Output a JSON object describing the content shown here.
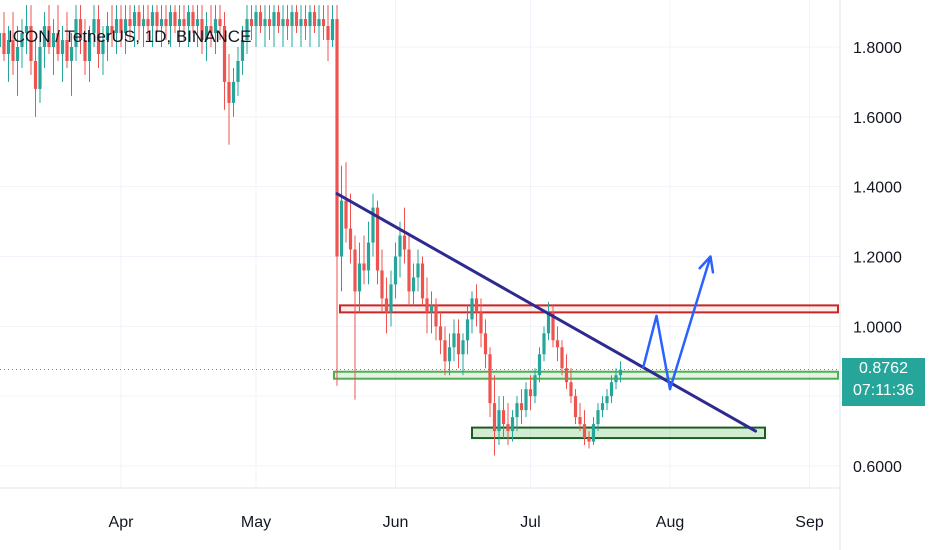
{
  "header": {
    "title": "ICON / TetherUS, 1D, BINANCE"
  },
  "price_badge": {
    "price": "0.8762",
    "countdown": "07:11:36"
  },
  "colors": {
    "up": "#26a69a",
    "down": "#ef5350",
    "trendline": "#2e2a8f",
    "resistance": "#c62828",
    "support": "#4caf50",
    "arrow": "#2962ff",
    "grid": "#f0f3fa",
    "price_line": "#26a69a"
  },
  "chart_data": {
    "type": "candlestick",
    "title": "ICON / TetherUS, 1D, BINANCE",
    "y_ticks": [
      "1.8000",
      "1.6000",
      "1.4000",
      "1.2000",
      "1.0000",
      "0.6000"
    ],
    "x_ticks": [
      "Apr",
      "May",
      "Jun",
      "Jul",
      "Aug",
      "Sep"
    ],
    "ylim": [
      0.55,
      1.92
    ],
    "last_price": 0.8762,
    "grid": true,
    "candles": [
      {
        "d": "Mar 05",
        "o": 1.8,
        "h": 1.88,
        "l": 1.72,
        "c": 1.84
      },
      {
        "d": "Mar 06",
        "o": 1.84,
        "h": 1.9,
        "l": 1.76,
        "c": 1.78
      },
      {
        "d": "Mar 07",
        "o": 1.78,
        "h": 1.86,
        "l": 1.7,
        "c": 1.82
      },
      {
        "d": "Mar 08",
        "o": 1.82,
        "h": 1.9,
        "l": 1.72,
        "c": 1.76
      },
      {
        "d": "Mar 09",
        "o": 1.76,
        "h": 1.86,
        "l": 1.66,
        "c": 1.8
      },
      {
        "d": "Mar 10",
        "o": 1.8,
        "h": 1.88,
        "l": 1.74,
        "c": 1.84
      },
      {
        "d": "Mar 11",
        "o": 1.84,
        "h": 1.92,
        "l": 1.78,
        "c": 1.86
      },
      {
        "d": "Mar 12",
        "o": 1.86,
        "h": 1.92,
        "l": 1.72,
        "c": 1.76
      },
      {
        "d": "Mar 13",
        "o": 1.76,
        "h": 1.82,
        "l": 1.6,
        "c": 1.68
      },
      {
        "d": "Mar 14",
        "o": 1.68,
        "h": 1.84,
        "l": 1.64,
        "c": 1.8
      },
      {
        "d": "Mar 15",
        "o": 1.8,
        "h": 1.9,
        "l": 1.74,
        "c": 1.86
      },
      {
        "d": "Mar 16",
        "o": 1.86,
        "h": 1.92,
        "l": 1.78,
        "c": 1.8
      },
      {
        "d": "Mar 17",
        "o": 1.8,
        "h": 1.88,
        "l": 1.72,
        "c": 1.84
      },
      {
        "d": "Mar 18",
        "o": 1.84,
        "h": 1.92,
        "l": 1.76,
        "c": 1.78
      },
      {
        "d": "Mar 19",
        "o": 1.78,
        "h": 1.86,
        "l": 1.7,
        "c": 1.82
      },
      {
        "d": "Mar 20",
        "o": 1.82,
        "h": 1.9,
        "l": 1.74,
        "c": 1.76
      },
      {
        "d": "Mar 21",
        "o": 1.76,
        "h": 1.84,
        "l": 1.66,
        "c": 1.8
      },
      {
        "d": "Mar 22",
        "o": 1.8,
        "h": 1.92,
        "l": 1.76,
        "c": 1.88
      },
      {
        "d": "Mar 23",
        "o": 1.88,
        "h": 1.92,
        "l": 1.78,
        "c": 1.82
      },
      {
        "d": "Mar 24",
        "o": 1.82,
        "h": 1.88,
        "l": 1.72,
        "c": 1.76
      },
      {
        "d": "Mar 25",
        "o": 1.76,
        "h": 1.86,
        "l": 1.7,
        "c": 1.84
      },
      {
        "d": "Mar 26",
        "o": 1.84,
        "h": 1.92,
        "l": 1.8,
        "c": 1.88
      },
      {
        "d": "Mar 27",
        "o": 1.88,
        "h": 1.92,
        "l": 1.74,
        "c": 1.78
      },
      {
        "d": "Mar 28",
        "o": 1.78,
        "h": 1.86,
        "l": 1.72,
        "c": 1.82
      },
      {
        "d": "Mar 29",
        "o": 1.82,
        "h": 1.9,
        "l": 1.76,
        "c": 1.86
      },
      {
        "d": "Mar 30",
        "o": 1.86,
        "h": 1.92,
        "l": 1.8,
        "c": 1.84
      },
      {
        "d": "Mar 31",
        "o": 1.84,
        "h": 1.92,
        "l": 1.78,
        "c": 1.88
      },
      {
        "d": "Apr 01",
        "o": 1.88,
        "h": 1.92,
        "l": 1.8,
        "c": 1.84
      },
      {
        "d": "Apr 02",
        "o": 1.84,
        "h": 1.92,
        "l": 1.78,
        "c": 1.88
      },
      {
        "d": "Apr 03",
        "o": 1.88,
        "h": 1.92,
        "l": 1.82,
        "c": 1.86
      },
      {
        "d": "Apr 04",
        "o": 1.86,
        "h": 1.92,
        "l": 1.8,
        "c": 1.9
      },
      {
        "d": "Apr 05",
        "o": 1.9,
        "h": 1.92,
        "l": 1.82,
        "c": 1.86
      },
      {
        "d": "Apr 06",
        "o": 1.86,
        "h": 1.92,
        "l": 1.8,
        "c": 1.88
      },
      {
        "d": "Apr 07",
        "o": 1.88,
        "h": 1.92,
        "l": 1.82,
        "c": 1.86
      },
      {
        "d": "Apr 08",
        "o": 1.86,
        "h": 1.92,
        "l": 1.8,
        "c": 1.9
      },
      {
        "d": "Apr 09",
        "o": 1.9,
        "h": 1.92,
        "l": 1.84,
        "c": 1.86
      },
      {
        "d": "Apr 10",
        "o": 1.86,
        "h": 1.92,
        "l": 1.8,
        "c": 1.88
      },
      {
        "d": "Apr 11",
        "o": 1.88,
        "h": 1.92,
        "l": 1.82,
        "c": 1.86
      },
      {
        "d": "Apr 12",
        "o": 1.86,
        "h": 1.92,
        "l": 1.8,
        "c": 1.9
      },
      {
        "d": "Apr 13",
        "o": 1.9,
        "h": 1.92,
        "l": 1.84,
        "c": 1.86
      },
      {
        "d": "Apr 14",
        "o": 1.86,
        "h": 1.92,
        "l": 1.8,
        "c": 1.88
      },
      {
        "d": "Apr 15",
        "o": 1.88,
        "h": 1.92,
        "l": 1.82,
        "c": 1.86
      },
      {
        "d": "Apr 16",
        "o": 1.86,
        "h": 1.92,
        "l": 1.8,
        "c": 1.9
      },
      {
        "d": "Apr 17",
        "o": 1.9,
        "h": 1.92,
        "l": 1.84,
        "c": 1.86
      },
      {
        "d": "Apr 18",
        "o": 1.86,
        "h": 1.92,
        "l": 1.8,
        "c": 1.88
      },
      {
        "d": "Apr 19",
        "o": 1.88,
        "h": 1.92,
        "l": 1.78,
        "c": 1.82
      },
      {
        "d": "Apr 20",
        "o": 1.82,
        "h": 1.9,
        "l": 1.76,
        "c": 1.86
      },
      {
        "d": "Apr 21",
        "o": 1.86,
        "h": 1.92,
        "l": 1.8,
        "c": 1.84
      },
      {
        "d": "Apr 22",
        "o": 1.84,
        "h": 1.92,
        "l": 1.78,
        "c": 1.88
      },
      {
        "d": "Apr 23",
        "o": 1.88,
        "h": 1.92,
        "l": 1.82,
        "c": 1.86
      },
      {
        "d": "Apr 24",
        "o": 1.86,
        "h": 1.9,
        "l": 1.62,
        "c": 1.7
      },
      {
        "d": "Apr 25",
        "o": 1.7,
        "h": 1.78,
        "l": 1.52,
        "c": 1.64
      },
      {
        "d": "Apr 26",
        "o": 1.64,
        "h": 1.74,
        "l": 1.6,
        "c": 1.7
      },
      {
        "d": "Apr 27",
        "o": 1.7,
        "h": 1.8,
        "l": 1.66,
        "c": 1.76
      },
      {
        "d": "Apr 28",
        "o": 1.76,
        "h": 1.86,
        "l": 1.72,
        "c": 1.82
      },
      {
        "d": "Apr 29",
        "o": 1.82,
        "h": 1.92,
        "l": 1.78,
        "c": 1.88
      },
      {
        "d": "Apr 30",
        "o": 1.88,
        "h": 1.92,
        "l": 1.82,
        "c": 1.86
      },
      {
        "d": "May 01",
        "o": 1.86,
        "h": 1.92,
        "l": 1.8,
        "c": 1.9
      },
      {
        "d": "May 02",
        "o": 1.9,
        "h": 1.92,
        "l": 1.84,
        "c": 1.86
      },
      {
        "d": "May 03",
        "o": 1.86,
        "h": 1.92,
        "l": 1.8,
        "c": 1.88
      },
      {
        "d": "May 04",
        "o": 1.88,
        "h": 1.92,
        "l": 1.82,
        "c": 1.86
      },
      {
        "d": "May 05",
        "o": 1.86,
        "h": 1.92,
        "l": 1.8,
        "c": 1.9
      },
      {
        "d": "May 06",
        "o": 1.9,
        "h": 1.92,
        "l": 1.84,
        "c": 1.86
      },
      {
        "d": "May 07",
        "o": 1.86,
        "h": 1.92,
        "l": 1.8,
        "c": 1.88
      },
      {
        "d": "May 08",
        "o": 1.88,
        "h": 1.92,
        "l": 1.82,
        "c": 1.86
      },
      {
        "d": "May 09",
        "o": 1.86,
        "h": 1.92,
        "l": 1.8,
        "c": 1.9
      },
      {
        "d": "May 10",
        "o": 1.9,
        "h": 1.92,
        "l": 1.84,
        "c": 1.86
      },
      {
        "d": "May 11",
        "o": 1.86,
        "h": 1.92,
        "l": 1.8,
        "c": 1.88
      },
      {
        "d": "May 12",
        "o": 1.88,
        "h": 1.92,
        "l": 1.82,
        "c": 1.86
      },
      {
        "d": "May 13",
        "o": 1.86,
        "h": 1.92,
        "l": 1.8,
        "c": 1.9
      },
      {
        "d": "May 14",
        "o": 1.9,
        "h": 1.92,
        "l": 1.84,
        "c": 1.86
      },
      {
        "d": "May 15",
        "o": 1.86,
        "h": 1.92,
        "l": 1.8,
        "c": 1.88
      },
      {
        "d": "May 16",
        "o": 1.88,
        "h": 1.92,
        "l": 1.82,
        "c": 1.86
      },
      {
        "d": "May 17",
        "o": 1.86,
        "h": 1.92,
        "l": 1.76,
        "c": 1.82
      },
      {
        "d": "May 18",
        "o": 1.82,
        "h": 1.92,
        "l": 1.8,
        "c": 1.88
      },
      {
        "d": "May 19",
        "o": 1.88,
        "h": 1.92,
        "l": 0.83,
        "c": 1.2
      },
      {
        "d": "May 20",
        "o": 1.2,
        "h": 1.46,
        "l": 1.1,
        "c": 1.36
      },
      {
        "d": "May 21",
        "o": 1.36,
        "h": 1.47,
        "l": 1.24,
        "c": 1.28
      },
      {
        "d": "May 22",
        "o": 1.28,
        "h": 1.38,
        "l": 1.18,
        "c": 1.22
      },
      {
        "d": "May 23",
        "o": 1.22,
        "h": 1.26,
        "l": 0.79,
        "c": 1.1
      },
      {
        "d": "May 24",
        "o": 1.1,
        "h": 1.24,
        "l": 1.04,
        "c": 1.18
      },
      {
        "d": "May 25",
        "o": 1.18,
        "h": 1.26,
        "l": 1.12,
        "c": 1.16
      },
      {
        "d": "May 26",
        "o": 1.16,
        "h": 1.3,
        "l": 1.12,
        "c": 1.24
      },
      {
        "d": "May 27",
        "o": 1.24,
        "h": 1.38,
        "l": 1.2,
        "c": 1.34
      },
      {
        "d": "May 28",
        "o": 1.34,
        "h": 1.36,
        "l": 1.12,
        "c": 1.16
      },
      {
        "d": "May 29",
        "o": 1.16,
        "h": 1.22,
        "l": 1.04,
        "c": 1.08
      },
      {
        "d": "May 30",
        "o": 1.08,
        "h": 1.14,
        "l": 0.98,
        "c": 1.04
      },
      {
        "d": "May 31",
        "o": 1.04,
        "h": 1.16,
        "l": 1.0,
        "c": 1.12
      },
      {
        "d": "Jun 01",
        "o": 1.12,
        "h": 1.24,
        "l": 1.08,
        "c": 1.2
      },
      {
        "d": "Jun 02",
        "o": 1.2,
        "h": 1.3,
        "l": 1.14,
        "c": 1.26
      },
      {
        "d": "Jun 03",
        "o": 1.26,
        "h": 1.34,
        "l": 1.18,
        "c": 1.22
      },
      {
        "d": "Jun 04",
        "o": 1.22,
        "h": 1.26,
        "l": 1.06,
        "c": 1.1
      },
      {
        "d": "Jun 05",
        "o": 1.1,
        "h": 1.18,
        "l": 1.06,
        "c": 1.14
      },
      {
        "d": "Jun 06",
        "o": 1.14,
        "h": 1.22,
        "l": 1.1,
        "c": 1.18
      },
      {
        "d": "Jun 07",
        "o": 1.18,
        "h": 1.2,
        "l": 1.06,
        "c": 1.08
      },
      {
        "d": "Jun 08",
        "o": 1.08,
        "h": 1.14,
        "l": 0.98,
        "c": 1.04
      },
      {
        "d": "Jun 09",
        "o": 1.04,
        "h": 1.1,
        "l": 0.98,
        "c": 1.06
      },
      {
        "d": "Jun 10",
        "o": 1.06,
        "h": 1.08,
        "l": 0.96,
        "c": 1.0
      },
      {
        "d": "Jun 11",
        "o": 1.0,
        "h": 1.04,
        "l": 0.92,
        "c": 0.96
      },
      {
        "d": "Jun 12",
        "o": 0.96,
        "h": 1.0,
        "l": 0.86,
        "c": 0.9
      },
      {
        "d": "Jun 13",
        "o": 0.9,
        "h": 0.98,
        "l": 0.86,
        "c": 0.94
      },
      {
        "d": "Jun 14",
        "o": 0.94,
        "h": 1.02,
        "l": 0.9,
        "c": 0.98
      },
      {
        "d": "Jun 15",
        "o": 0.98,
        "h": 1.02,
        "l": 0.88,
        "c": 0.92
      },
      {
        "d": "Jun 16",
        "o": 0.92,
        "h": 0.98,
        "l": 0.86,
        "c": 0.96
      },
      {
        "d": "Jun 17",
        "o": 0.96,
        "h": 1.06,
        "l": 0.92,
        "c": 1.02
      },
      {
        "d": "Jun 18",
        "o": 1.02,
        "h": 1.1,
        "l": 0.98,
        "c": 1.08
      },
      {
        "d": "Jun 19",
        "o": 1.08,
        "h": 1.12,
        "l": 1.0,
        "c": 1.04
      },
      {
        "d": "Jun 20",
        "o": 1.04,
        "h": 1.08,
        "l": 0.94,
        "c": 0.98
      },
      {
        "d": "Jun 21",
        "o": 0.98,
        "h": 1.02,
        "l": 0.88,
        "c": 0.92
      },
      {
        "d": "Jun 22",
        "o": 0.92,
        "h": 0.94,
        "l": 0.74,
        "c": 0.78
      },
      {
        "d": "Jun 23",
        "o": 0.78,
        "h": 0.86,
        "l": 0.63,
        "c": 0.7
      },
      {
        "d": "Jun 24",
        "o": 0.7,
        "h": 0.8,
        "l": 0.66,
        "c": 0.76
      },
      {
        "d": "Jun 25",
        "o": 0.76,
        "h": 0.8,
        "l": 0.68,
        "c": 0.72
      },
      {
        "d": "Jun 26",
        "o": 0.72,
        "h": 0.78,
        "l": 0.66,
        "c": 0.7
      },
      {
        "d": "Jun 27",
        "o": 0.7,
        "h": 0.76,
        "l": 0.67,
        "c": 0.74
      },
      {
        "d": "Jun 28",
        "o": 0.74,
        "h": 0.8,
        "l": 0.7,
        "c": 0.78
      },
      {
        "d": "Jun 29",
        "o": 0.78,
        "h": 0.82,
        "l": 0.72,
        "c": 0.76
      },
      {
        "d": "Jun 30",
        "o": 0.76,
        "h": 0.84,
        "l": 0.74,
        "c": 0.82
      },
      {
        "d": "Jul 01",
        "o": 0.82,
        "h": 0.86,
        "l": 0.76,
        "c": 0.8
      },
      {
        "d": "Jul 02",
        "o": 0.8,
        "h": 0.88,
        "l": 0.78,
        "c": 0.86
      },
      {
        "d": "Jul 03",
        "o": 0.86,
        "h": 0.94,
        "l": 0.84,
        "c": 0.92
      },
      {
        "d": "Jul 04",
        "o": 0.92,
        "h": 1.0,
        "l": 0.9,
        "c": 0.98
      },
      {
        "d": "Jul 05",
        "o": 0.98,
        "h": 1.07,
        "l": 0.96,
        "c": 1.04
      },
      {
        "d": "Jul 06",
        "o": 1.04,
        "h": 1.06,
        "l": 0.94,
        "c": 0.96
      },
      {
        "d": "Jul 07",
        "o": 0.96,
        "h": 1.0,
        "l": 0.9,
        "c": 0.94
      },
      {
        "d": "Jul 08",
        "o": 0.94,
        "h": 0.96,
        "l": 0.86,
        "c": 0.88
      },
      {
        "d": "Jul 09",
        "o": 0.88,
        "h": 0.92,
        "l": 0.82,
        "c": 0.84
      },
      {
        "d": "Jul 10",
        "o": 0.84,
        "h": 0.88,
        "l": 0.78,
        "c": 0.8
      },
      {
        "d": "Jul 11",
        "o": 0.8,
        "h": 0.82,
        "l": 0.72,
        "c": 0.74
      },
      {
        "d": "Jul 12",
        "o": 0.74,
        "h": 0.78,
        "l": 0.7,
        "c": 0.72
      },
      {
        "d": "Jul 13",
        "o": 0.72,
        "h": 0.76,
        "l": 0.66,
        "c": 0.68
      },
      {
        "d": "Jul 14",
        "o": 0.68,
        "h": 0.7,
        "l": 0.65,
        "c": 0.67
      },
      {
        "d": "Jul 15",
        "o": 0.67,
        "h": 0.74,
        "l": 0.66,
        "c": 0.72
      },
      {
        "d": "Jul 16",
        "o": 0.72,
        "h": 0.78,
        "l": 0.7,
        "c": 0.76
      },
      {
        "d": "Jul 17",
        "o": 0.76,
        "h": 0.8,
        "l": 0.74,
        "c": 0.78
      },
      {
        "d": "Jul 18",
        "o": 0.78,
        "h": 0.82,
        "l": 0.76,
        "c": 0.8
      },
      {
        "d": "Jul 19",
        "o": 0.8,
        "h": 0.86,
        "l": 0.78,
        "c": 0.84
      },
      {
        "d": "Jul 20",
        "o": 0.84,
        "h": 0.88,
        "l": 0.82,
        "c": 0.86
      },
      {
        "d": "Jul 21",
        "o": 0.86,
        "h": 0.9,
        "l": 0.84,
        "c": 0.8762
      }
    ],
    "support_resistance": [
      {
        "name": "resistance",
        "low": 1.04,
        "high": 1.06
      },
      {
        "name": "support",
        "low": 0.85,
        "high": 0.87
      },
      {
        "name": "demand",
        "low": 0.68,
        "high": 0.71
      }
    ],
    "trendline": [
      {
        "d": "May 19",
        "y": 1.38
      },
      {
        "d": "Aug 20",
        "y": 0.7
      }
    ],
    "projection": [
      {
        "d": "Jul 26",
        "y": 0.88
      },
      {
        "d": "Jul 29",
        "y": 1.03
      },
      {
        "d": "Aug 01",
        "y": 0.82
      },
      {
        "d": "Aug 10",
        "y": 1.2
      }
    ]
  }
}
